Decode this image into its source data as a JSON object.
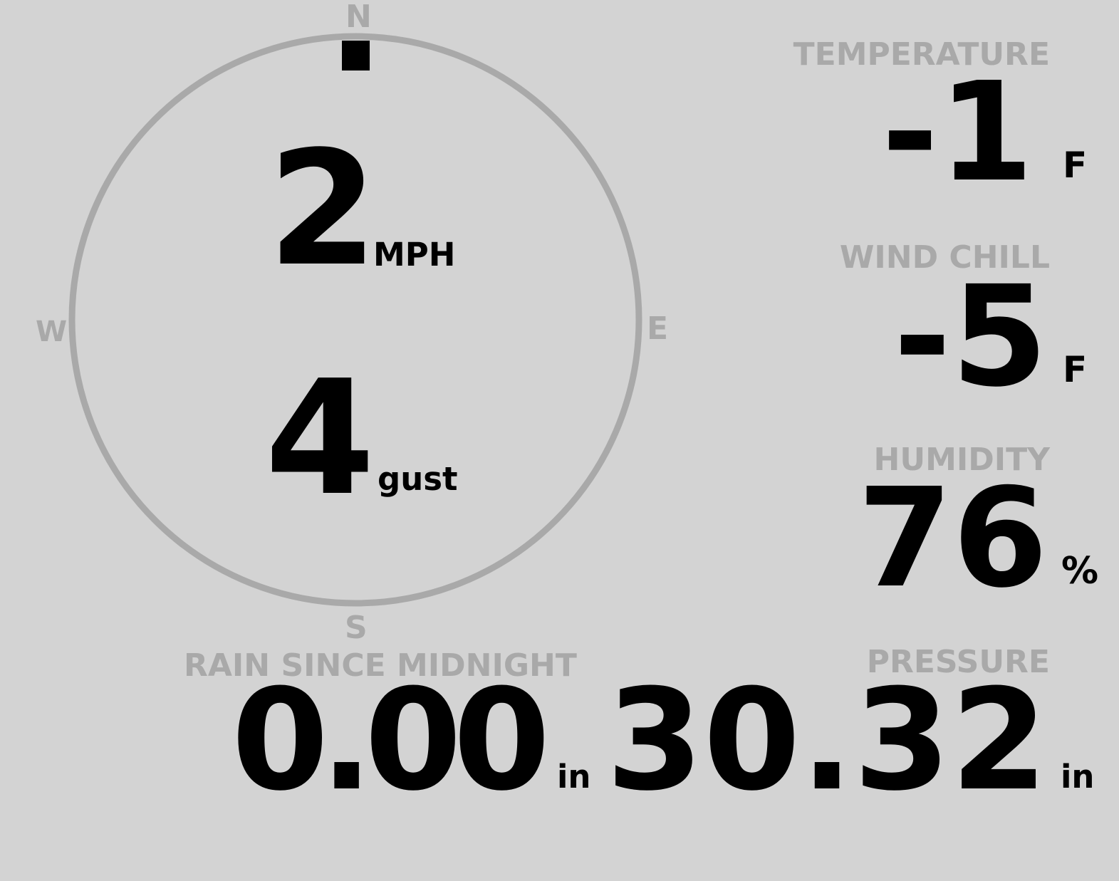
{
  "colors": {
    "background": "#d3d3d3",
    "muted": "#a9a9a9",
    "value": "#000000"
  },
  "compass": {
    "north": "N",
    "south": "S",
    "east": "E",
    "west": "W",
    "wind_direction_deg": 0
  },
  "wind": {
    "speed": "2",
    "speed_unit": "MPH",
    "gust": "4",
    "gust_unit": "gust"
  },
  "temperature": {
    "label": "TEMPERATURE",
    "value": "-1",
    "unit": "F"
  },
  "wind_chill": {
    "label": "WIND CHILL",
    "value": "-5",
    "unit": "F"
  },
  "humidity": {
    "label": "HUMIDITY",
    "value": "76",
    "unit": "%"
  },
  "rain": {
    "label": "RAIN SINCE MIDNIGHT",
    "value": "0.00",
    "unit": "in"
  },
  "pressure": {
    "label": "PRESSURE",
    "value": "30.32",
    "unit": "in"
  }
}
